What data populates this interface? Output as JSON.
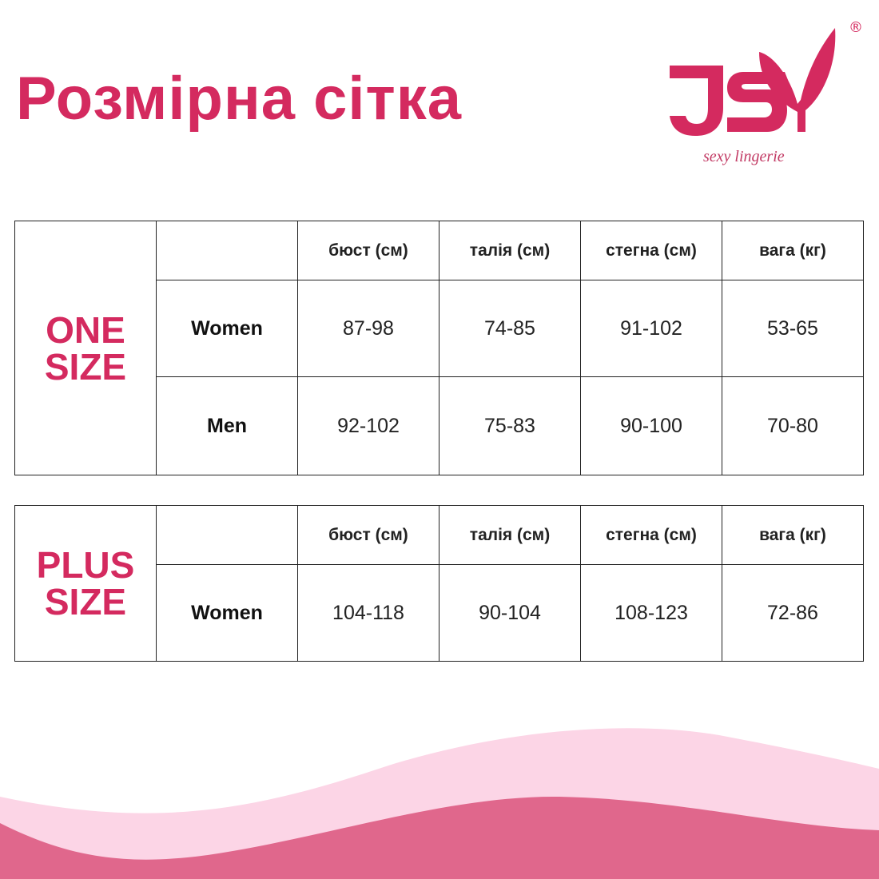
{
  "title": "Розмірна сітка",
  "logo": {
    "brand": "JSY",
    "tagline": "sexy lingerie",
    "registered": "®"
  },
  "colors": {
    "accent": "#d42a5f",
    "wave_light": "#fcd5e6",
    "wave_dark": "#e0678c"
  },
  "headers": [
    "бюст (см)",
    "талія (см)",
    "стегна (см)",
    "вага (кг)"
  ],
  "one_size": {
    "label_1": "ONE",
    "label_2": "SIZE",
    "rows": [
      {
        "label": "Women",
        "values": [
          "87-98",
          "74-85",
          "91-102",
          "53-65"
        ]
      },
      {
        "label": "Men",
        "values": [
          "92-102",
          "75-83",
          "90-100",
          "70-80"
        ]
      }
    ]
  },
  "plus_size": {
    "label_1": "PLUS",
    "label_2": "SIZE",
    "rows": [
      {
        "label": "Women",
        "values": [
          "104-118",
          "90-104",
          "108-123",
          "72-86"
        ]
      }
    ]
  }
}
